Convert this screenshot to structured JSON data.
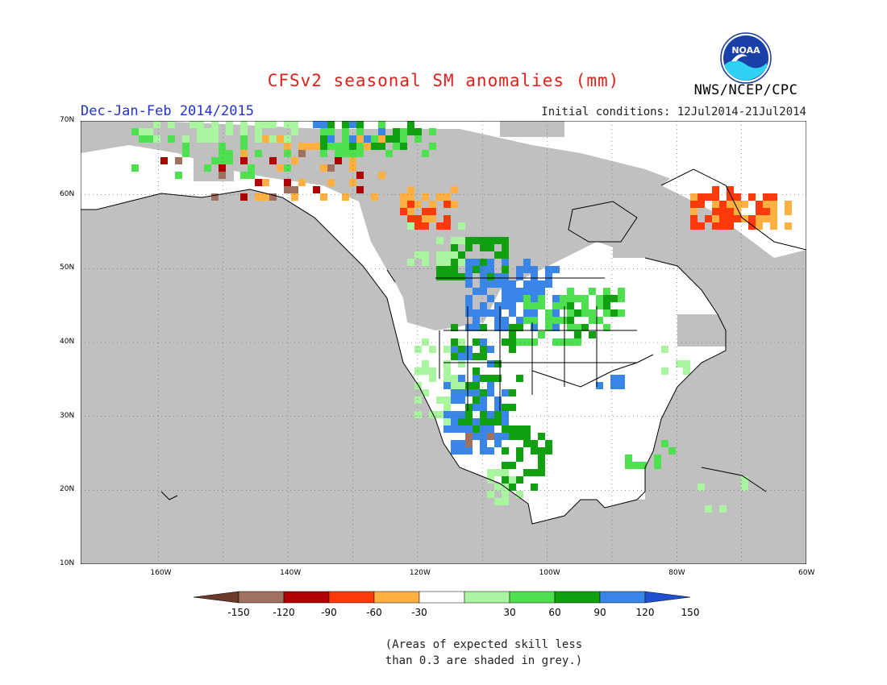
{
  "header": {
    "title": "CFSv2 seasonal SM anomalies (mm)",
    "season": "Dec-Jan-Feb 2014/2015",
    "initial_conditions": "Initial conditions: 12Jul2014-21Jul2014",
    "agency": "NWS/NCEP/CPC",
    "logo_text": "NOAA"
  },
  "map": {
    "variable": "Seasonal soil moisture anomaly forecast",
    "lon_range": [
      -172,
      -60
    ],
    "lat_range": [
      10,
      70
    ],
    "lat_labels": [
      "10N",
      "20N",
      "30N",
      "40N",
      "50N",
      "60N",
      "70N"
    ],
    "lon_labels": [
      "160W",
      "140W",
      "120W",
      "100W",
      "80W",
      "60W"
    ],
    "gridlines": true,
    "no_skill_color": "#c0c0c0"
  },
  "colorbar": {
    "tick_labels": [
      "-150",
      "-120",
      "-90",
      "-60",
      "-30",
      "30",
      "60",
      "90",
      "120",
      "150"
    ],
    "colors": [
      "#6a3a2a",
      "#a07060",
      "#b00000",
      "#ff3a0a",
      "#ffb040",
      "#ffffff",
      "#aaf5a0",
      "#4ee04e",
      "#10a010",
      "#3a86e8",
      "#2050d0"
    ]
  },
  "note": {
    "line1": "(Areas of expected skill less",
    "line2": "than 0.3 are shaded in grey.)"
  }
}
